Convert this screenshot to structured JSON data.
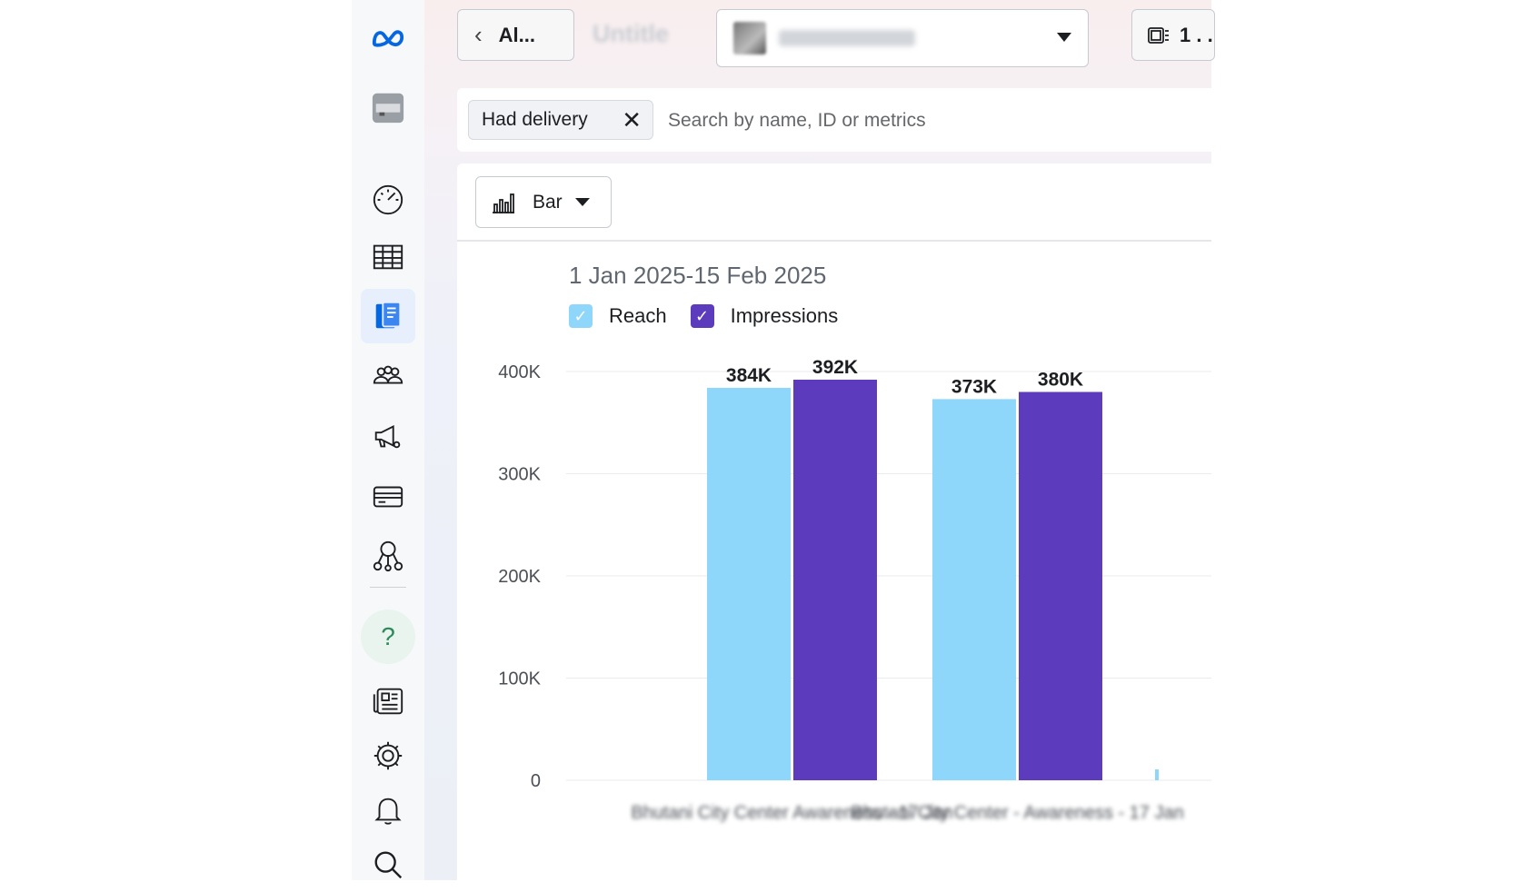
{
  "header": {
    "back_label": "Al...",
    "title": "Untitle",
    "right_button_label": "1 . ."
  },
  "filters": {
    "chip_label": "Had delivery",
    "chip_close": "✕",
    "search_placeholder": "Search by name, ID or metrics",
    "search_value": ""
  },
  "toolbar": {
    "chart_type_label": "Bar"
  },
  "sidebar": {
    "help_label": "?",
    "icons": [
      "meta-logo-icon",
      "account-avatar-icon",
      "dashboard-gauge-icon",
      "table-icon",
      "reports-icon",
      "audiences-icon",
      "campaign-megaphone-icon",
      "billing-card-icon",
      "business-network-icon",
      "help-icon",
      "news-icon",
      "settings-gear-icon",
      "notifications-bell-icon",
      "search-icon"
    ]
  },
  "colors": {
    "reach": "#8fd6fb",
    "impressions": "#5d3bbd",
    "meta_blue": "#0668e1",
    "active_bg": "#e7eefc"
  },
  "chart_data": {
    "type": "bar",
    "title": "1 Jan 2025-15 Feb 2025",
    "categories": [
      "Bhutani City Center Awareness - 17 Jan",
      "Bhutani City Center - Awareness - 17 Jan"
    ],
    "series": [
      {
        "name": "Reach",
        "values": [
          384000,
          373000
        ],
        "labels": [
          "384K",
          "373K"
        ]
      },
      {
        "name": "Impressions",
        "values": [
          392000,
          380000
        ],
        "labels": [
          "392K",
          "380K"
        ]
      }
    ],
    "yticks": [
      0,
      100000,
      200000,
      300000,
      400000
    ],
    "ytick_labels": [
      "0",
      "100K",
      "200K",
      "300K",
      "400K"
    ],
    "ylim": [
      0,
      400000
    ],
    "xlabel": "",
    "ylabel": "",
    "legend": "top-left",
    "grid": true
  }
}
